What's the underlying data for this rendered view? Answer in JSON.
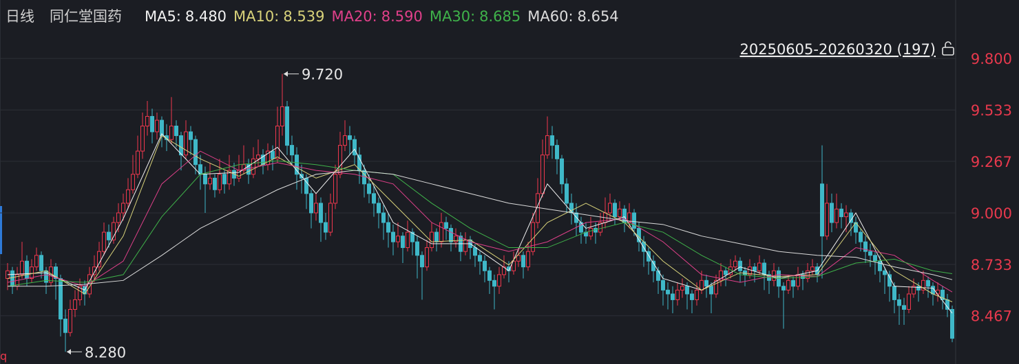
{
  "chart_data": {
    "type": "candlestick",
    "period": "日线",
    "title": "同仁堂国药",
    "range_label": "20250605-20260320 (197)",
    "corner_mark": "q",
    "up_color": "#f0384e",
    "down_color": "#3fb8c8",
    "ylim": [
      8.217,
      10.103
    ],
    "yticks": [
      {
        "value": 9.8,
        "label": "9.800"
      },
      {
        "value": 9.533,
        "label": "9.533"
      },
      {
        "value": 9.267,
        "label": "9.267"
      },
      {
        "value": 9.0,
        "label": "9.000"
      },
      {
        "value": 8.733,
        "label": "8.733"
      },
      {
        "value": 8.467,
        "label": "8.467"
      }
    ],
    "grid": true,
    "annotations": [
      {
        "index": 57,
        "value": 9.72,
        "label": "9.720"
      },
      {
        "index": 12,
        "value": 8.28,
        "label": "8.280"
      }
    ],
    "ohlc": [
      [
        8.66,
        8.74,
        8.6,
        8.7
      ],
      [
        8.7,
        8.72,
        8.58,
        8.62
      ],
      [
        8.62,
        8.72,
        8.6,
        8.68
      ],
      [
        8.68,
        8.85,
        8.66,
        8.75
      ],
      [
        8.75,
        8.78,
        8.62,
        8.66
      ],
      [
        8.66,
        8.76,
        8.64,
        8.72
      ],
      [
        8.72,
        8.82,
        8.7,
        8.78
      ],
      [
        8.78,
        8.8,
        8.66,
        8.7
      ],
      [
        8.7,
        8.72,
        8.58,
        8.64
      ],
      [
        8.64,
        8.76,
        8.62,
        8.72
      ],
      [
        8.72,
        8.74,
        8.55,
        8.66
      ],
      [
        8.66,
        8.68,
        8.36,
        8.45
      ],
      [
        8.45,
        8.5,
        8.28,
        8.38
      ],
      [
        8.38,
        8.55,
        8.36,
        8.5
      ],
      [
        8.5,
        8.6,
        8.46,
        8.55
      ],
      [
        8.55,
        8.66,
        8.52,
        8.62
      ],
      [
        8.62,
        8.65,
        8.52,
        8.58
      ],
      [
        8.58,
        8.72,
        8.56,
        8.68
      ],
      [
        8.68,
        8.78,
        8.64,
        8.72
      ],
      [
        8.72,
        8.85,
        8.7,
        8.8
      ],
      [
        8.8,
        8.95,
        8.78,
        8.9
      ],
      [
        8.9,
        8.94,
        8.82,
        8.86
      ],
      [
        8.86,
        8.98,
        8.84,
        8.95
      ],
      [
        8.95,
        9.05,
        8.9,
        9.0
      ],
      [
        9.0,
        9.1,
        8.96,
        9.05
      ],
      [
        9.05,
        9.18,
        9.02,
        9.12
      ],
      [
        9.12,
        9.3,
        9.1,
        9.2
      ],
      [
        9.2,
        9.4,
        9.18,
        9.32
      ],
      [
        9.32,
        9.52,
        9.28,
        9.45
      ],
      [
        9.45,
        9.58,
        9.4,
        9.5
      ],
      [
        9.5,
        9.54,
        9.36,
        9.42
      ],
      [
        9.42,
        9.52,
        9.38,
        9.48
      ],
      [
        9.48,
        9.5,
        9.34,
        9.4
      ],
      [
        9.4,
        9.46,
        9.32,
        9.38
      ],
      [
        9.38,
        9.6,
        9.36,
        9.45
      ],
      [
        9.45,
        9.48,
        9.34,
        9.4
      ],
      [
        9.4,
        9.42,
        9.22,
        9.3
      ],
      [
        9.3,
        9.48,
        9.28,
        9.42
      ],
      [
        9.42,
        9.45,
        9.3,
        9.38
      ],
      [
        9.38,
        9.4,
        9.2,
        9.25
      ],
      [
        9.25,
        9.3,
        9.12,
        9.2
      ],
      [
        9.2,
        9.24,
        9.0,
        9.15
      ],
      [
        9.15,
        9.26,
        9.12,
        9.18
      ],
      [
        9.18,
        9.2,
        9.08,
        9.12
      ],
      [
        9.12,
        9.28,
        9.1,
        9.2
      ],
      [
        9.2,
        9.22,
        9.1,
        9.15
      ],
      [
        9.15,
        9.3,
        9.12,
        9.22
      ],
      [
        9.22,
        9.26,
        9.14,
        9.18
      ],
      [
        9.18,
        9.3,
        9.16,
        9.22
      ],
      [
        9.22,
        9.35,
        9.2,
        9.25
      ],
      [
        9.25,
        9.28,
        9.15,
        9.2
      ],
      [
        9.2,
        9.34,
        9.18,
        9.28
      ],
      [
        9.28,
        9.38,
        9.24,
        9.3
      ],
      [
        9.3,
        9.33,
        9.2,
        9.25
      ],
      [
        9.25,
        9.36,
        9.22,
        9.32
      ],
      [
        9.32,
        9.35,
        9.22,
        9.28
      ],
      [
        9.28,
        9.55,
        9.26,
        9.45
      ],
      [
        9.45,
        9.72,
        9.4,
        9.55
      ],
      [
        9.55,
        9.58,
        9.3,
        9.35
      ],
      [
        9.35,
        9.4,
        9.25,
        9.3
      ],
      [
        9.3,
        9.34,
        9.12,
        9.2
      ],
      [
        9.2,
        9.25,
        9.1,
        9.18
      ],
      [
        9.18,
        9.2,
        9.02,
        9.1
      ],
      [
        9.1,
        9.12,
        8.92,
        9.0
      ],
      [
        9.0,
        9.1,
        8.96,
        9.05
      ],
      [
        9.05,
        9.08,
        8.85,
        8.95
      ],
      [
        8.95,
        9.0,
        8.86,
        8.9
      ],
      [
        8.9,
        9.1,
        8.88,
        9.05
      ],
      [
        9.05,
        9.25,
        9.02,
        9.2
      ],
      [
        9.2,
        9.42,
        9.18,
        9.35
      ],
      [
        9.35,
        9.48,
        9.32,
        9.4
      ],
      [
        9.4,
        9.45,
        9.3,
        9.38
      ],
      [
        9.38,
        9.4,
        9.25,
        9.3
      ],
      [
        9.3,
        9.34,
        9.15,
        9.22
      ],
      [
        9.22,
        9.25,
        9.08,
        9.15
      ],
      [
        9.15,
        9.2,
        9.05,
        9.1
      ],
      [
        9.1,
        9.14,
        8.98,
        9.05
      ],
      [
        9.05,
        9.08,
        8.92,
        9.0
      ],
      [
        9.0,
        9.04,
        8.86,
        8.95
      ],
      [
        8.95,
        9.0,
        8.82,
        8.9
      ],
      [
        8.9,
        8.94,
        8.78,
        8.85
      ],
      [
        8.85,
        8.95,
        8.82,
        8.88
      ],
      [
        8.88,
        8.9,
        8.74,
        8.82
      ],
      [
        8.82,
        8.96,
        8.8,
        8.9
      ],
      [
        8.9,
        8.92,
        8.78,
        8.85
      ],
      [
        8.85,
        8.88,
        8.66,
        8.78
      ],
      [
        8.78,
        8.8,
        8.55,
        8.72
      ],
      [
        8.72,
        8.86,
        8.7,
        8.82
      ],
      [
        8.82,
        8.95,
        8.8,
        8.9
      ],
      [
        8.9,
        8.92,
        8.8,
        8.85
      ],
      [
        8.85,
        9.0,
        8.82,
        8.95
      ],
      [
        8.95,
        8.98,
        8.86,
        8.92
      ],
      [
        8.92,
        8.94,
        8.8,
        8.85
      ],
      [
        8.85,
        8.92,
        8.82,
        8.88
      ],
      [
        8.88,
        8.9,
        8.75,
        8.8
      ],
      [
        8.8,
        8.9,
        8.78,
        8.86
      ],
      [
        8.86,
        8.88,
        8.76,
        8.82
      ],
      [
        8.82,
        8.84,
        8.72,
        8.78
      ],
      [
        8.78,
        8.8,
        8.68,
        8.75
      ],
      [
        8.75,
        8.78,
        8.64,
        8.7
      ],
      [
        8.7,
        8.72,
        8.58,
        8.65
      ],
      [
        8.65,
        8.68,
        8.5,
        8.62
      ],
      [
        8.62,
        8.72,
        8.58,
        8.68
      ],
      [
        8.68,
        8.78,
        8.66,
        8.72
      ],
      [
        8.72,
        8.75,
        8.64,
        8.7
      ],
      [
        8.7,
        8.8,
        8.68,
        8.75
      ],
      [
        8.75,
        8.82,
        8.72,
        8.78
      ],
      [
        8.78,
        8.8,
        8.66,
        8.72
      ],
      [
        8.72,
        8.85,
        8.7,
        8.8
      ],
      [
        8.8,
        9.0,
        8.78,
        8.95
      ],
      [
        8.95,
        9.18,
        8.92,
        9.1
      ],
      [
        9.1,
        9.38,
        9.08,
        9.3
      ],
      [
        9.3,
        9.5,
        9.28,
        9.4
      ],
      [
        9.4,
        9.45,
        9.28,
        9.35
      ],
      [
        9.35,
        9.38,
        9.2,
        9.28
      ],
      [
        9.28,
        9.3,
        9.1,
        9.15
      ],
      [
        9.15,
        9.18,
        9.0,
        9.05
      ],
      [
        9.05,
        9.1,
        8.94,
        9.0
      ],
      [
        9.0,
        9.05,
        8.88,
        8.95
      ],
      [
        8.95,
        8.98,
        8.84,
        8.9
      ],
      [
        8.9,
        8.95,
        8.84,
        8.88
      ],
      [
        8.88,
        8.98,
        8.86,
        8.92
      ],
      [
        8.92,
        8.95,
        8.84,
        8.9
      ],
      [
        8.9,
        9.0,
        8.88,
        8.95
      ],
      [
        8.95,
        9.08,
        8.92,
        9.0
      ],
      [
        9.0,
        9.1,
        8.96,
        9.05
      ],
      [
        9.05,
        9.07,
        8.94,
        8.98
      ],
      [
        8.98,
        9.06,
        8.96,
        9.02
      ],
      [
        9.02,
        9.04,
        8.9,
        8.95
      ],
      [
        8.95,
        9.05,
        8.92,
        9.0
      ],
      [
        9.0,
        9.02,
        8.88,
        8.92
      ],
      [
        8.92,
        8.95,
        8.8,
        8.85
      ],
      [
        8.85,
        8.88,
        8.72,
        8.8
      ],
      [
        8.8,
        8.82,
        8.68,
        8.75
      ],
      [
        8.75,
        8.78,
        8.64,
        8.7
      ],
      [
        8.7,
        8.72,
        8.58,
        8.65
      ],
      [
        8.65,
        8.68,
        8.52,
        8.6
      ],
      [
        8.6,
        8.64,
        8.5,
        8.58
      ],
      [
        8.58,
        8.62,
        8.48,
        8.55
      ],
      [
        8.55,
        8.64,
        8.52,
        8.6
      ],
      [
        8.6,
        8.66,
        8.56,
        8.62
      ],
      [
        8.62,
        8.64,
        8.5,
        8.58
      ],
      [
        8.58,
        8.6,
        8.48,
        8.55
      ],
      [
        8.55,
        8.64,
        8.52,
        8.6
      ],
      [
        8.6,
        8.7,
        8.58,
        8.65
      ],
      [
        8.65,
        8.68,
        8.56,
        8.62
      ],
      [
        8.62,
        8.64,
        8.48,
        8.58
      ],
      [
        8.58,
        8.68,
        8.56,
        8.65
      ],
      [
        8.65,
        8.74,
        8.62,
        8.7
      ],
      [
        8.7,
        8.72,
        8.62,
        8.68
      ],
      [
        8.68,
        8.76,
        8.66,
        8.72
      ],
      [
        8.72,
        8.78,
        8.7,
        8.75
      ],
      [
        8.75,
        8.77,
        8.64,
        8.7
      ],
      [
        8.7,
        8.72,
        8.62,
        8.68
      ],
      [
        8.68,
        8.76,
        8.66,
        8.72
      ],
      [
        8.72,
        8.74,
        8.64,
        8.7
      ],
      [
        8.7,
        8.78,
        8.68,
        8.74
      ],
      [
        8.74,
        8.76,
        8.6,
        8.68
      ],
      [
        8.68,
        8.7,
        8.58,
        8.65
      ],
      [
        8.65,
        8.74,
        8.62,
        8.7
      ],
      [
        8.7,
        8.72,
        8.56,
        8.62
      ],
      [
        8.62,
        8.64,
        8.4,
        8.6
      ],
      [
        8.6,
        8.68,
        8.58,
        8.65
      ],
      [
        8.65,
        8.67,
        8.56,
        8.62
      ],
      [
        8.62,
        8.72,
        8.6,
        8.68
      ],
      [
        8.68,
        8.7,
        8.6,
        8.66
      ],
      [
        8.66,
        8.74,
        8.64,
        8.7
      ],
      [
        8.7,
        8.76,
        8.68,
        8.72
      ],
      [
        8.72,
        8.74,
        8.64,
        8.68
      ],
      [
        9.15,
        9.35,
        8.66,
        8.88
      ],
      [
        8.88,
        9.15,
        8.86,
        9.05
      ],
      [
        9.05,
        9.1,
        8.9,
        8.95
      ],
      [
        8.95,
        9.1,
        8.92,
        9.02
      ],
      [
        9.02,
        9.05,
        8.92,
        8.98
      ],
      [
        8.98,
        9.04,
        8.9,
        9.0
      ],
      [
        9.0,
        9.02,
        8.88,
        8.95
      ],
      [
        8.95,
        8.98,
        8.84,
        8.9
      ],
      [
        8.9,
        8.92,
        8.8,
        8.85
      ],
      [
        8.85,
        8.88,
        8.74,
        8.8
      ],
      [
        8.8,
        8.84,
        8.72,
        8.78
      ],
      [
        8.78,
        8.8,
        8.68,
        8.75
      ],
      [
        8.75,
        8.78,
        8.64,
        8.7
      ],
      [
        8.7,
        8.72,
        8.58,
        8.68
      ],
      [
        8.68,
        8.7,
        8.54,
        8.62
      ],
      [
        8.62,
        8.64,
        8.48,
        8.55
      ],
      [
        8.55,
        8.58,
        8.42,
        8.52
      ],
      [
        8.52,
        8.56,
        8.42,
        8.5
      ],
      [
        8.5,
        8.62,
        8.48,
        8.58
      ],
      [
        8.58,
        8.66,
        8.56,
        8.62
      ],
      [
        8.62,
        8.64,
        8.54,
        8.6
      ],
      [
        8.6,
        8.7,
        8.58,
        8.65
      ],
      [
        8.65,
        8.67,
        8.56,
        8.62
      ],
      [
        8.62,
        8.64,
        8.52,
        8.58
      ],
      [
        8.58,
        8.64,
        8.54,
        8.6
      ],
      [
        8.6,
        8.62,
        8.5,
        8.55
      ],
      [
        8.55,
        8.58,
        8.46,
        8.5
      ],
      [
        8.5,
        8.52,
        8.33,
        8.35
      ]
    ],
    "ma_x": [
      0,
      8,
      16,
      24,
      32,
      40,
      48,
      56,
      64,
      72,
      80,
      88,
      96,
      104,
      112,
      120,
      128,
      136,
      144,
      152,
      160,
      168,
      176,
      184,
      192,
      196
    ],
    "series": [
      {
        "name": "MA5:",
        "color": "#f2f2f2",
        "last": 8.48,
        "last_label": "8.480",
        "values": [
          8.68,
          8.69,
          8.6,
          8.97,
          9.41,
          9.2,
          9.21,
          9.34,
          9.1,
          9.33,
          8.95,
          8.84,
          8.84,
          8.7,
          9.15,
          8.92,
          8.98,
          8.66,
          8.6,
          8.72,
          8.66,
          8.7,
          9.0,
          8.62,
          8.61,
          8.48
        ]
      },
      {
        "name": "MA10:",
        "color": "#d8d27a",
        "last": 8.539,
        "last_label": "8.539",
        "values": [
          8.66,
          8.7,
          8.58,
          8.88,
          9.4,
          9.28,
          9.19,
          9.29,
          9.18,
          9.25,
          9.05,
          8.85,
          8.86,
          8.73,
          8.95,
          9.05,
          8.95,
          8.75,
          8.6,
          8.69,
          8.67,
          8.68,
          8.95,
          8.7,
          8.58,
          8.539
        ]
      },
      {
        "name": "MA20:",
        "color": "#e0408a",
        "last": 8.59,
        "last_label": "8.590",
        "values": [
          8.64,
          8.68,
          8.62,
          8.75,
          9.15,
          9.32,
          9.22,
          9.26,
          9.22,
          9.2,
          9.15,
          8.95,
          8.85,
          8.8,
          8.85,
          8.95,
          8.97,
          8.85,
          8.68,
          8.64,
          8.68,
          8.67,
          8.82,
          8.78,
          8.65,
          8.59
        ]
      },
      {
        "name": "MA30:",
        "color": "#3fb24a",
        "last": 8.685,
        "last_label": "8.685",
        "values": [
          8.62,
          8.65,
          8.64,
          8.68,
          8.98,
          9.2,
          9.25,
          9.27,
          9.25,
          9.22,
          9.2,
          9.05,
          8.92,
          8.82,
          8.82,
          8.9,
          8.95,
          8.9,
          8.78,
          8.68,
          8.66,
          8.67,
          8.74,
          8.76,
          8.7,
          8.685
        ]
      },
      {
        "name": "MA60:",
        "color": "#dcdcdc",
        "last": 8.654,
        "last_label": "8.654",
        "values": [
          8.62,
          8.62,
          8.63,
          8.65,
          8.78,
          8.92,
          9.02,
          9.12,
          9.2,
          9.22,
          9.2,
          9.15,
          9.1,
          9.05,
          9.02,
          8.99,
          8.96,
          8.94,
          8.88,
          8.84,
          8.8,
          8.78,
          8.77,
          8.72,
          8.68,
          8.654
        ]
      }
    ]
  }
}
